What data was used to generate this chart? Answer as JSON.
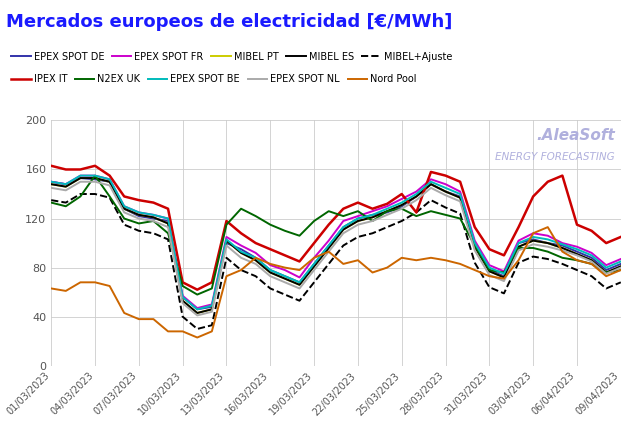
{
  "title": "Mercados europeos de electricidad [€/MWh]",
  "title_color": "#1a1aff",
  "background_color": "#ffffff",
  "grid_color": "#cccccc",
  "xlabels": [
    "01/03/2023",
    "04/03/2023",
    "07/03/2023",
    "10/03/2023",
    "13/03/2023",
    "16/03/2023",
    "19/03/2023",
    "22/03/2023",
    "25/03/2023",
    "28/03/2023",
    "31/03/2023",
    "03/04/2023",
    "06/04/2023",
    "09/04/2023"
  ],
  "ylim": [
    0,
    200
  ],
  "yticks": [
    0,
    40,
    80,
    120,
    160,
    200
  ],
  "series": [
    {
      "name": "EPEX SPOT DE",
      "color": "#3333aa",
      "linestyle": "-",
      "linewidth": 1.4,
      "values": [
        150,
        148,
        153,
        152,
        150,
        128,
        122,
        120,
        118,
        56,
        46,
        48,
        100,
        95,
        88,
        78,
        73,
        68,
        83,
        98,
        113,
        120,
        123,
        125,
        130,
        138,
        148,
        142,
        138,
        98,
        78,
        73,
        100,
        103,
        100,
        98,
        93,
        88,
        78,
        83
      ]
    },
    {
      "name": "EPEX SPOT FR",
      "color": "#cc00cc",
      "linestyle": "-",
      "linewidth": 1.4,
      "values": [
        150,
        148,
        155,
        155,
        152,
        130,
        125,
        123,
        120,
        57,
        47,
        50,
        105,
        98,
        92,
        82,
        78,
        72,
        88,
        102,
        118,
        122,
        126,
        130,
        136,
        142,
        152,
        148,
        142,
        102,
        82,
        77,
        102,
        108,
        106,
        100,
        97,
        92,
        82,
        87
      ]
    },
    {
      "name": "MIBEL PT",
      "color": "#cccc00",
      "linestyle": "-",
      "linewidth": 1.4,
      "values": [
        148,
        146,
        153,
        153,
        150,
        128,
        123,
        121,
        116,
        53,
        43,
        46,
        102,
        92,
        86,
        76,
        71,
        66,
        81,
        96,
        111,
        118,
        121,
        126,
        131,
        138,
        148,
        142,
        137,
        97,
        77,
        72,
        97,
        102,
        100,
        96,
        91,
        86,
        76,
        81
      ]
    },
    {
      "name": "MIBEL ES",
      "color": "#000000",
      "linestyle": "-",
      "linewidth": 1.4,
      "values": [
        148,
        146,
        153,
        153,
        150,
        128,
        123,
        121,
        116,
        53,
        43,
        46,
        102,
        92,
        86,
        76,
        71,
        66,
        81,
        96,
        111,
        118,
        121,
        126,
        131,
        138,
        148,
        142,
        137,
        97,
        77,
        72,
        97,
        102,
        100,
        96,
        91,
        86,
        76,
        81
      ]
    },
    {
      "name": "MIBEL+Ajuste",
      "color": "#000000",
      "linestyle": "--",
      "linewidth": 1.4,
      "values": [
        135,
        133,
        140,
        140,
        137,
        115,
        110,
        108,
        103,
        40,
        30,
        33,
        88,
        78,
        73,
        63,
        58,
        53,
        68,
        83,
        98,
        105,
        108,
        113,
        118,
        125,
        135,
        129,
        124,
        84,
        64,
        59,
        84,
        89,
        87,
        83,
        78,
        73,
        63,
        68
      ]
    },
    {
      "name": "IPEX IT",
      "color": "#cc0000",
      "linestyle": "-",
      "linewidth": 1.8,
      "values": [
        163,
        160,
        160,
        163,
        155,
        138,
        135,
        133,
        128,
        68,
        62,
        68,
        118,
        108,
        100,
        95,
        90,
        85,
        100,
        115,
        128,
        133,
        128,
        132,
        140,
        125,
        158,
        155,
        150,
        113,
        95,
        90,
        113,
        138,
        150,
        155,
        115,
        110,
        100,
        105
      ]
    },
    {
      "name": "N2EX UK",
      "color": "#006600",
      "linestyle": "-",
      "linewidth": 1.4,
      "values": [
        133,
        130,
        138,
        155,
        138,
        120,
        116,
        118,
        108,
        65,
        58,
        63,
        115,
        128,
        122,
        115,
        110,
        106,
        118,
        126,
        122,
        126,
        118,
        126,
        128,
        122,
        126,
        123,
        120,
        98,
        78,
        76,
        96,
        96,
        93,
        88,
        86,
        83,
        76,
        78
      ]
    },
    {
      "name": "EPEX SPOT BE",
      "color": "#00bbbb",
      "linestyle": "-",
      "linewidth": 1.4,
      "values": [
        150,
        148,
        155,
        155,
        152,
        130,
        125,
        123,
        120,
        56,
        46,
        49,
        103,
        93,
        88,
        78,
        73,
        68,
        83,
        98,
        113,
        120,
        123,
        128,
        133,
        140,
        150,
        145,
        140,
        100,
        80,
        75,
        100,
        105,
        103,
        99,
        95,
        90,
        80,
        85
      ]
    },
    {
      "name": "EPEX SPOT NL",
      "color": "#aaaaaa",
      "linestyle": "-",
      "linewidth": 1.4,
      "values": [
        145,
        143,
        150,
        150,
        147,
        125,
        120,
        118,
        113,
        51,
        41,
        44,
        98,
        88,
        83,
        73,
        68,
        63,
        78,
        93,
        108,
        115,
        118,
        123,
        128,
        135,
        145,
        139,
        134,
        94,
        74,
        69,
        94,
        99,
        97,
        94,
        90,
        85,
        75,
        80
      ]
    },
    {
      "name": "Nord Pool",
      "color": "#cc6600",
      "linestyle": "-",
      "linewidth": 1.4,
      "values": [
        63,
        61,
        68,
        68,
        65,
        43,
        38,
        38,
        28,
        28,
        23,
        28,
        73,
        78,
        88,
        83,
        80,
        78,
        88,
        93,
        83,
        86,
        76,
        80,
        88,
        86,
        88,
        86,
        83,
        78,
        73,
        71,
        86,
        108,
        113,
        93,
        86,
        83,
        73,
        78
      ]
    }
  ],
  "watermark_line1": ".AleaSoft",
  "watermark_line2": "ENERGY FORECASTING",
  "watermark_color": "#b0b0dd",
  "legend_rows": [
    [
      "EPEX SPOT DE",
      "EPEX SPOT FR",
      "MIBEL PT",
      "MIBEL ES",
      "MIBEL+Ajuste"
    ],
    [
      "IPEX IT",
      "N2EX UK",
      "EPEX SPOT BE",
      "EPEX SPOT NL",
      "Nord Pool"
    ]
  ]
}
